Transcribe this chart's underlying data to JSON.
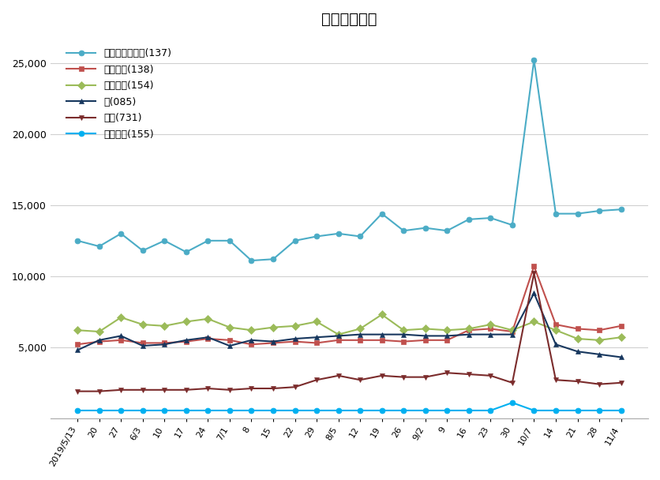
{
  "title": "販売動向比較",
  "x_labels": [
    "2019/5/13",
    "20",
    "27",
    "6/3",
    "10",
    "17",
    "24",
    "7/1",
    "8",
    "15",
    "22",
    "29",
    "8/5",
    "12",
    "19",
    "26",
    "9/2",
    "9",
    "16",
    "23",
    "30",
    "10/7",
    "14",
    "21",
    "28",
    "11/4"
  ],
  "series": [
    {
      "name": "即席カップめん(137)",
      "color": "#4bacc6",
      "marker": "o",
      "values": [
        12500,
        12100,
        13000,
        11800,
        12500,
        11700,
        12500,
        12500,
        11100,
        11200,
        12500,
        12800,
        13000,
        12800,
        14400,
        13200,
        13400,
        13200,
        14000,
        14100,
        13600,
        25200,
        14400,
        14400,
        14600,
        14700
      ]
    },
    {
      "name": "即席食品(138)",
      "color": "#c0504d",
      "marker": "s",
      "values": [
        5200,
        5400,
        5500,
        5300,
        5300,
        5400,
        5600,
        5500,
        5200,
        5300,
        5400,
        5300,
        5500,
        5500,
        5500,
        5400,
        5500,
        5500,
        6200,
        6300,
        6100,
        10700,
        6600,
        6300,
        6200,
        6500
      ]
    },
    {
      "name": "水産缶詰(154)",
      "color": "#9bbb59",
      "marker": "D",
      "values": [
        6200,
        6100,
        7100,
        6600,
        6500,
        6800,
        7000,
        6400,
        6200,
        6400,
        6500,
        6800,
        5900,
        6300,
        7300,
        6200,
        6300,
        6200,
        6300,
        6600,
        6200,
        6800,
        6200,
        5600,
        5500,
        5700
      ]
    },
    {
      "name": "水(085)",
      "color": "#17375e",
      "marker": "^",
      "values": [
        4800,
        5500,
        5800,
        5100,
        5200,
        5500,
        5700,
        5100,
        5500,
        5400,
        5600,
        5700,
        5800,
        5900,
        5900,
        5900,
        5800,
        5800,
        5900,
        5900,
        5900,
        8800,
        5200,
        4700,
        4500,
        4300
      ]
    },
    {
      "name": "電池(731)",
      "color": "#7b2c2c",
      "marker": "v",
      "values": [
        1900,
        1900,
        2000,
        2000,
        2000,
        2000,
        2100,
        2000,
        2100,
        2100,
        2200,
        2700,
        3000,
        2700,
        3000,
        2900,
        2900,
        3200,
        3100,
        3000,
        2500,
        10200,
        2700,
        2600,
        2400,
        2500
      ]
    },
    {
      "name": "畜肉缶詰(155)",
      "color": "#00b0f0",
      "marker": "o",
      "values": [
        550,
        550,
        550,
        550,
        550,
        550,
        550,
        550,
        550,
        550,
        550,
        550,
        550,
        550,
        550,
        550,
        550,
        550,
        550,
        550,
        1100,
        550,
        550,
        550,
        550,
        550
      ]
    }
  ],
  "ylim": [
    0,
    27000
  ],
  "yticks": [
    0,
    5000,
    10000,
    15000,
    20000,
    25000
  ],
  "background_color": "#ffffff",
  "grid_color": "#d0d0d0",
  "title_fontsize": 14
}
